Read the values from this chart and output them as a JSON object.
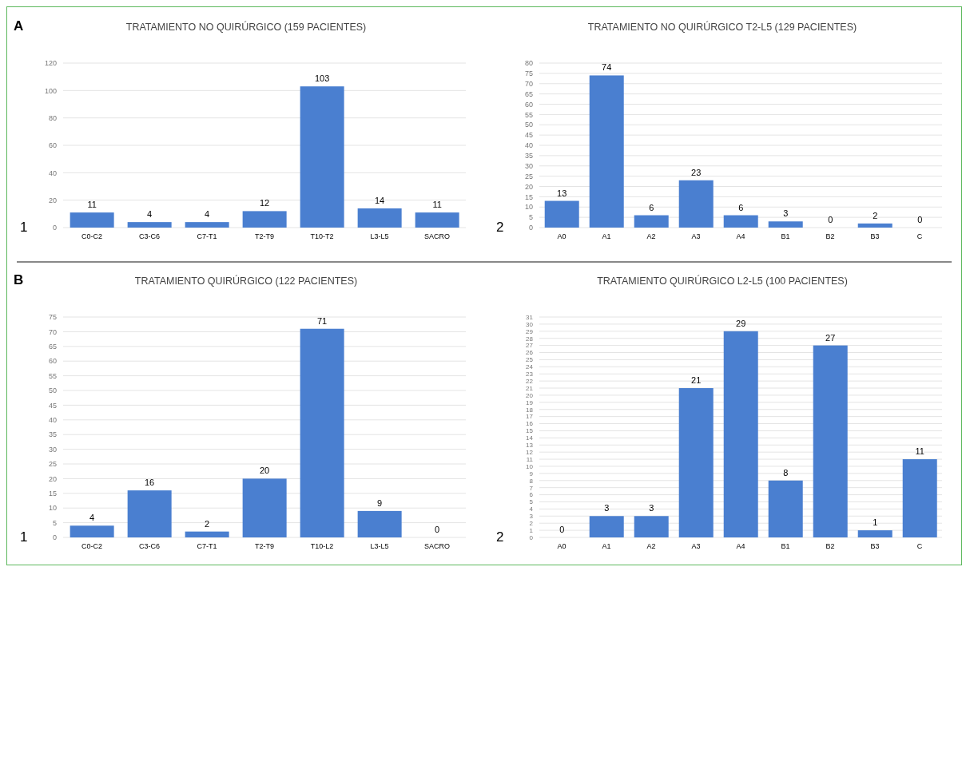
{
  "chart_data": [
    {
      "type": "bar",
      "title": "TRATAMIENTO NO QUIRÚRGICO (159 PACIENTES)",
      "annotations": [
        "A",
        "1"
      ],
      "categories": [
        "C0-C2",
        "C3-C6",
        "C7-T1",
        "T2-T9",
        "T10-T2",
        "L3-L5",
        "SACRO"
      ],
      "values": [
        11,
        4,
        4,
        12,
        103,
        14,
        11
      ],
      "color": "#4a7fd0",
      "ylim": [
        0,
        120
      ],
      "yticks": [
        0,
        20,
        40,
        60,
        80,
        100,
        120
      ],
      "grid": "y",
      "data_labels": true
    },
    {
      "type": "bar",
      "title": "TRATAMIENTO NO QUIRÚRGICO T2-L5 (129 PACIENTES)",
      "annotations": [
        "2"
      ],
      "categories": [
        "A0",
        "A1",
        "A2",
        "A3",
        "A4",
        "B1",
        "B2",
        "B3",
        "C"
      ],
      "values": [
        13,
        74,
        6,
        23,
        6,
        3,
        0,
        2,
        0
      ],
      "color": "#4a7fd0",
      "ylim": [
        0,
        80
      ],
      "yticks": [
        0,
        5,
        10,
        15,
        20,
        25,
        30,
        35,
        40,
        45,
        50,
        55,
        60,
        65,
        70,
        75,
        80
      ],
      "grid": "y",
      "data_labels": true
    },
    {
      "type": "bar",
      "title": "TRATAMIENTO QUIRÚRGICO (122 PACIENTES)",
      "annotations": [
        "B",
        "1"
      ],
      "categories": [
        "C0-C2",
        "C3-C6",
        "C7-T1",
        "T2-T9",
        "T10-L2",
        "L3-L5",
        "SACRO"
      ],
      "values": [
        4,
        16,
        2,
        20,
        71,
        9,
        0
      ],
      "color": "#4a7fd0",
      "ylim": [
        0,
        75
      ],
      "yticks": [
        0,
        5,
        10,
        15,
        20,
        25,
        30,
        35,
        40,
        45,
        50,
        55,
        60,
        65,
        70,
        75
      ],
      "grid": "y",
      "data_labels": true
    },
    {
      "type": "bar",
      "title": "TRATAMIENTO QUIRÚRGICO L2-L5 (100 PACIENTES)",
      "annotations": [
        "2"
      ],
      "categories": [
        "A0",
        "A1",
        "A2",
        "A3",
        "A4",
        "B1",
        "B2",
        "B3",
        "C"
      ],
      "values": [
        0,
        3,
        3,
        21,
        29,
        8,
        27,
        1,
        11
      ],
      "color": "#4a7fd0",
      "ylim": [
        0,
        31
      ],
      "yticks": [
        0,
        1,
        2,
        3,
        4,
        5,
        6,
        7,
        8,
        9,
        10,
        11,
        12,
        13,
        14,
        15,
        16,
        17,
        18,
        19,
        20,
        21,
        22,
        23,
        24,
        25,
        26,
        27,
        28,
        29,
        30,
        31
      ],
      "grid": "y",
      "data_labels": true
    }
  ]
}
